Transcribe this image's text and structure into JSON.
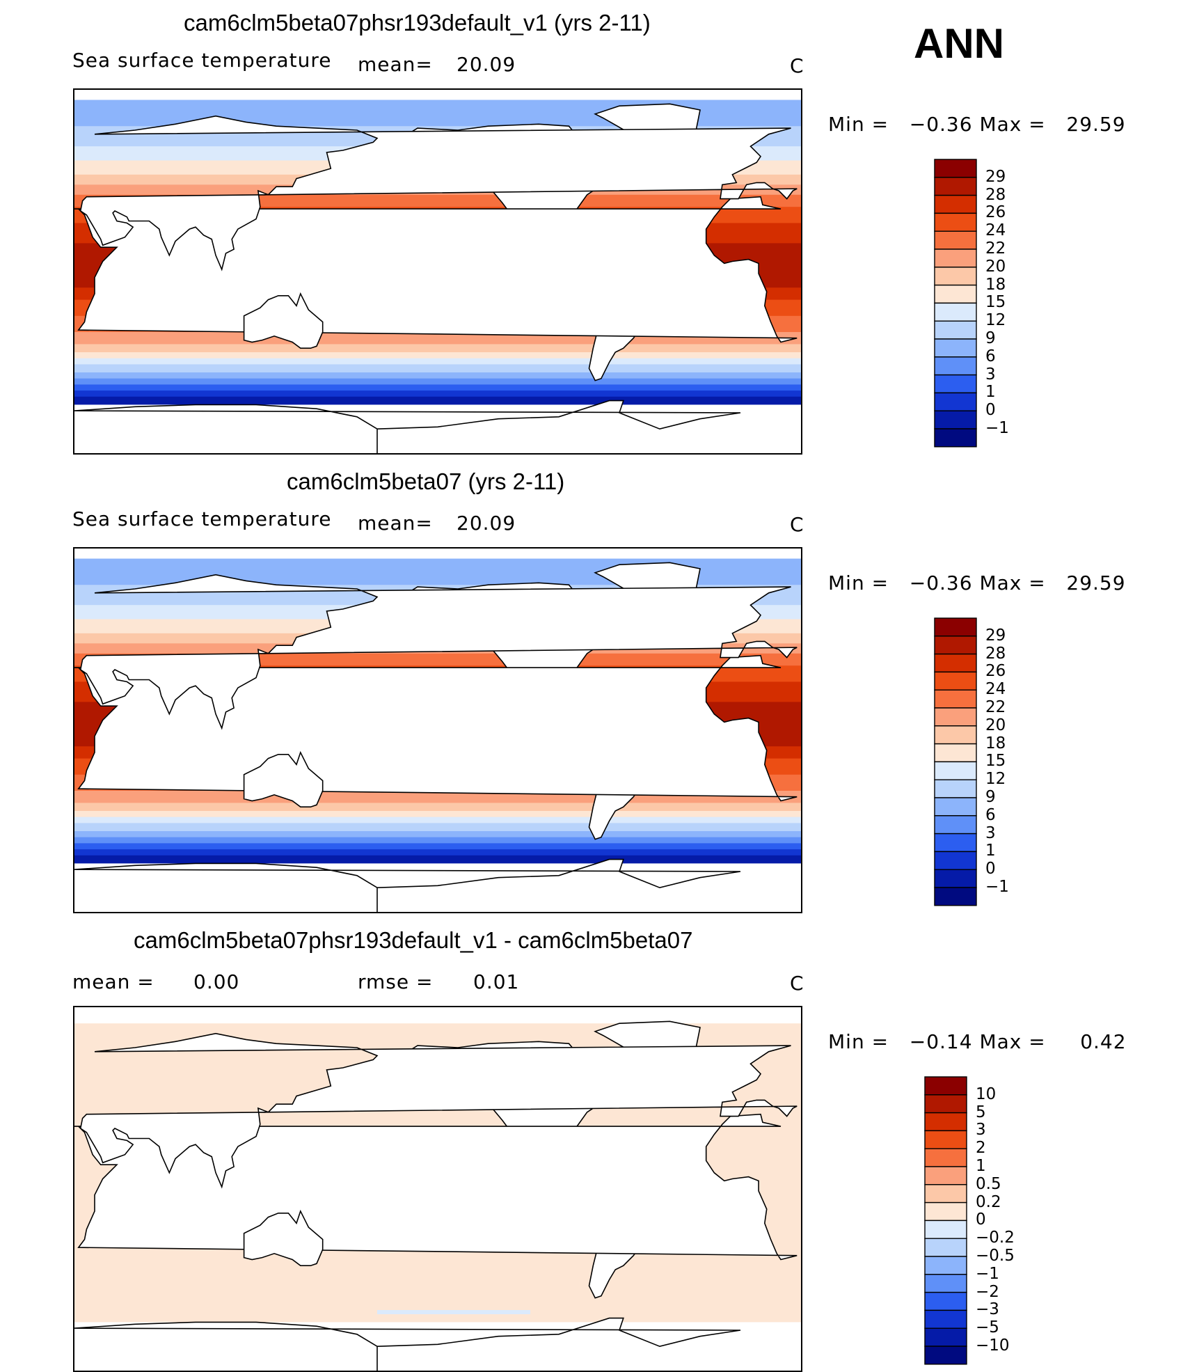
{
  "season": "ANN",
  "panels": [
    {
      "title": "cam6clm5beta07phsr193default_v1 (yrs 2-11)",
      "variable": "Sea surface temperature",
      "stat_label": "mean=",
      "stat_value": "20.09",
      "units": "C",
      "minmax_text": "Min =   −0.36 Max =   29.59"
    },
    {
      "title": "cam6clm5beta07 (yrs 2-11)",
      "variable": "Sea surface temperature",
      "stat_label": "mean=",
      "stat_value": "20.09",
      "units": "C",
      "minmax_text": "Min =   −0.36 Max =   29.59"
    },
    {
      "title": "cam6clm5beta07phsr193default_v1 - cam6clm5beta07",
      "mean_label": "mean =",
      "mean_value": "0.00",
      "rmse_label": "rmse =",
      "rmse_value": "0.01",
      "units": "C",
      "minmax_text": "Min =   −0.14 Max =     0.42"
    }
  ],
  "chart_data": [
    {
      "type": "heatmap",
      "title": "cam6clm5beta07phsr193default_v1 (yrs 2-11)",
      "field": "Sea surface temperature",
      "units": "C",
      "mean": 20.09,
      "min": -0.36,
      "max": 29.59,
      "projection": "cylindrical equidistant, Pacific-centered",
      "colorbar_levels": [
        "29",
        "28",
        "26",
        "24",
        "22",
        "20",
        "18",
        "15",
        "12",
        "9",
        "6",
        "3",
        "1",
        "0",
        "−1"
      ],
      "colorbar_colors": [
        "#8b0000",
        "#b01800",
        "#d42e00",
        "#ec4e14",
        "#f6703e",
        "#faa07c",
        "#fcc8a8",
        "#fde6d4",
        "#dbeafc",
        "#b8d3fb",
        "#8cb4fb",
        "#5f90f8",
        "#2c5ef0",
        "#1236d2",
        "#051ba8",
        "#000a80"
      ]
    },
    {
      "type": "heatmap",
      "title": "cam6clm5beta07 (yrs 2-11)",
      "field": "Sea surface temperature",
      "units": "C",
      "mean": 20.09,
      "min": -0.36,
      "max": 29.59,
      "projection": "cylindrical equidistant, Pacific-centered",
      "colorbar_levels": [
        "29",
        "28",
        "26",
        "24",
        "22",
        "20",
        "18",
        "15",
        "12",
        "9",
        "6",
        "3",
        "1",
        "0",
        "−1"
      ],
      "colorbar_colors": [
        "#8b0000",
        "#b01800",
        "#d42e00",
        "#ec4e14",
        "#f6703e",
        "#faa07c",
        "#fcc8a8",
        "#fde6d4",
        "#dbeafc",
        "#b8d3fb",
        "#8cb4fb",
        "#5f90f8",
        "#2c5ef0",
        "#1236d2",
        "#051ba8",
        "#000a80"
      ]
    },
    {
      "type": "heatmap",
      "title": "cam6clm5beta07phsr193default_v1 - cam6clm5beta07",
      "field": "difference",
      "units": "C",
      "mean": 0.0,
      "rmse": 0.01,
      "min": -0.14,
      "max": 0.42,
      "dominant_range": "0 to 0.2",
      "colorbar_levels": [
        "10",
        "5",
        "3",
        "2",
        "1",
        "0.5",
        "0.2",
        "0",
        "−0.2",
        "−0.5",
        "−1",
        "−2",
        "−3",
        "−5",
        "−10"
      ],
      "colorbar_colors": [
        "#8b0000",
        "#b01800",
        "#d42e00",
        "#ec4e14",
        "#f6703e",
        "#faa07c",
        "#fcc8a8",
        "#fde6d4",
        "#dbeafc",
        "#b8d3fb",
        "#8cb4fb",
        "#5f90f8",
        "#2c5ef0",
        "#1236d2",
        "#051ba8",
        "#000a80"
      ]
    }
  ]
}
